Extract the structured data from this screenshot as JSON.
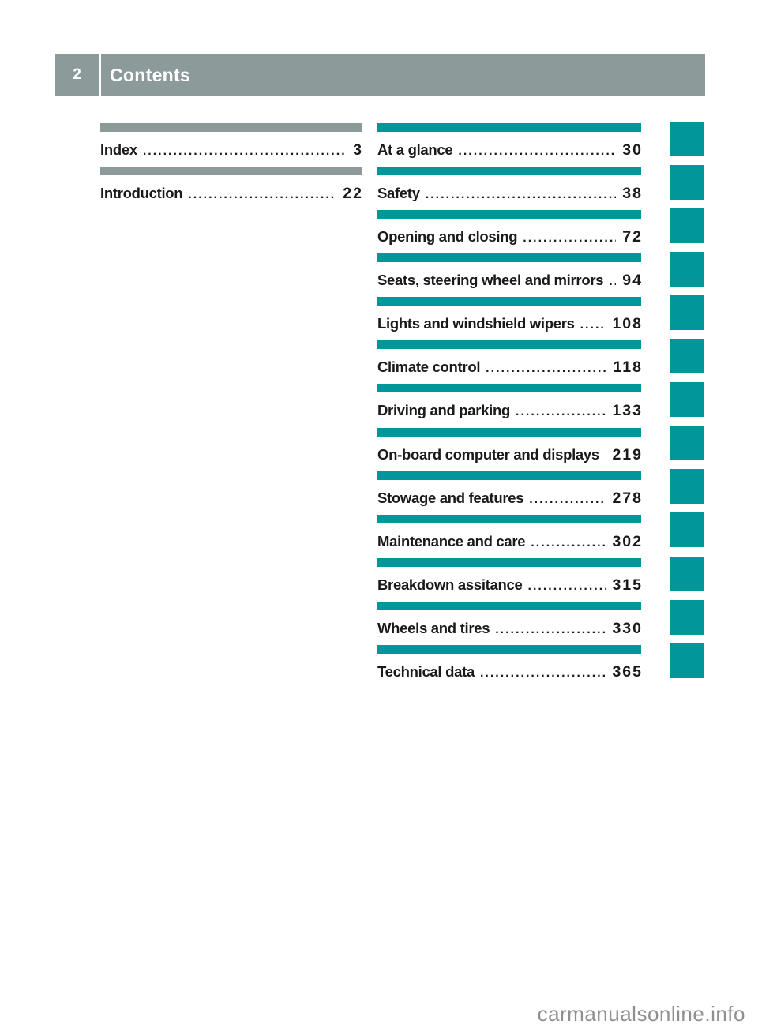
{
  "header": {
    "page_number": "2",
    "title": "Contents"
  },
  "colors": {
    "teal": "#00969A",
    "gray": "#8C9A99",
    "text": "#1A1A1A",
    "watermark_gray": "#8F8F8F"
  },
  "toc_left": [
    {
      "title": "Index",
      "page": "3"
    },
    {
      "title": "Introduction",
      "page": "22"
    }
  ],
  "toc_right": [
    {
      "title": "At a glance",
      "page": "30"
    },
    {
      "title": "Safety",
      "page": "38"
    },
    {
      "title": "Opening and closing",
      "page": "72"
    },
    {
      "title": "Seats, steering wheel and mirrors",
      "page": "94"
    },
    {
      "title": "Lights and windshield wipers",
      "page": "108"
    },
    {
      "title": "Climate control",
      "page": "118"
    },
    {
      "title": "Driving and parking",
      "page": "133"
    },
    {
      "title": "On-board computer and displays",
      "page": "219"
    },
    {
      "title": "Stowage and features",
      "page": "278"
    },
    {
      "title": "Maintenance and care",
      "page": "302"
    },
    {
      "title": "Breakdown assitance",
      "page": "315"
    },
    {
      "title": "Wheels and tires",
      "page": "330"
    },
    {
      "title": "Technical data",
      "page": "365"
    }
  ],
  "side_tabs": {
    "count": 13
  },
  "watermark": "carmanualsonline.info"
}
